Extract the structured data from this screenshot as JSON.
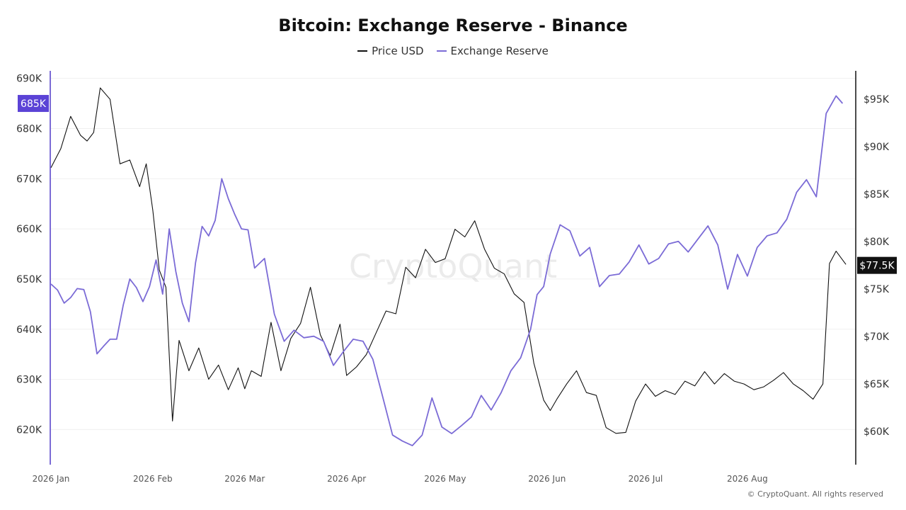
{
  "chart_data": {
    "type": "line",
    "title": "Bitcoin: Exchange Reserve - Binance",
    "legend_placement": "top-center",
    "grid": true,
    "x_ticks": [
      "2026 Jan",
      "2026 Feb",
      "2026 Mar",
      "2026 Apr",
      "2026 May",
      "2026 Jun",
      "2026 Jul",
      "2026 Aug"
    ],
    "left_axis": {
      "ticks": [
        "690K",
        "680K",
        "670K",
        "660K",
        "650K",
        "640K",
        "630K",
        "620K"
      ],
      "range": [
        613000,
        691500
      ],
      "last_value_label": "685K",
      "last_value": 685000
    },
    "right_axis": {
      "ticks": [
        "$95K",
        "$90K",
        "$85K",
        "$80K",
        "$75K",
        "$70K",
        "$65K",
        "$60K"
      ],
      "range": [
        56500,
        98000
      ],
      "last_value_label": "$77.5K",
      "last_value": 77500
    },
    "series": [
      {
        "name": "Price USD",
        "axis": "right",
        "color": "#111111",
        "x": [
          "2026-01-01",
          "2026-01-04",
          "2026-01-07",
          "2026-01-10",
          "2026-01-12",
          "2026-01-14",
          "2026-01-16",
          "2026-01-19",
          "2026-01-22",
          "2026-01-25",
          "2026-01-28",
          "2026-01-30",
          "2026-02-01",
          "2026-02-03",
          "2026-02-05",
          "2026-02-07",
          "2026-02-09",
          "2026-02-12",
          "2026-02-15",
          "2026-02-18",
          "2026-02-21",
          "2026-02-24",
          "2026-02-27",
          "2026-03-01",
          "2026-03-03",
          "2026-03-06",
          "2026-03-09",
          "2026-03-12",
          "2026-03-15",
          "2026-03-18",
          "2026-03-21",
          "2026-03-24",
          "2026-03-27",
          "2026-03-30",
          "2026-04-01",
          "2026-04-04",
          "2026-04-07",
          "2026-04-10",
          "2026-04-13",
          "2026-04-16",
          "2026-04-19",
          "2026-04-22",
          "2026-04-25",
          "2026-04-28",
          "2026-05-01",
          "2026-05-04",
          "2026-05-07",
          "2026-05-10",
          "2026-05-13",
          "2026-05-16",
          "2026-05-19",
          "2026-05-22",
          "2026-05-25",
          "2026-05-28",
          "2026-05-31",
          "2026-06-02",
          "2026-06-04",
          "2026-06-07",
          "2026-06-10",
          "2026-06-13",
          "2026-06-16",
          "2026-06-19",
          "2026-06-22",
          "2026-06-25",
          "2026-06-28",
          "2026-07-01",
          "2026-07-04",
          "2026-07-07",
          "2026-07-10",
          "2026-07-13",
          "2026-07-16",
          "2026-07-19",
          "2026-07-22",
          "2026-07-25",
          "2026-07-28",
          "2026-07-31",
          "2026-08-03",
          "2026-08-06",
          "2026-08-09",
          "2026-08-12",
          "2026-08-15",
          "2026-08-18",
          "2026-08-21",
          "2026-08-24",
          "2026-08-26",
          "2026-08-28",
          "2026-08-31"
        ],
        "values": [
          87800,
          89800,
          93200,
          91200,
          90600,
          91500,
          96200,
          95000,
          88200,
          88600,
          85800,
          88200,
          83300,
          77000,
          75200,
          61100,
          69600,
          66400,
          68800,
          65500,
          67000,
          64400,
          66700,
          64500,
          66400,
          65800,
          71500,
          66400,
          69800,
          71400,
          75200,
          70200,
          68000,
          71300,
          65900,
          66800,
          68100,
          70400,
          72700,
          72400,
          77300,
          76200,
          79200,
          77800,
          78200,
          81300,
          80500,
          82200,
          79200,
          77200,
          76600,
          74500,
          73600,
          67200,
          63300,
          62200,
          63400,
          65000,
          66400,
          64100,
          63800,
          60400,
          59800,
          59900,
          63200,
          65000,
          63700,
          64300,
          63900,
          65300,
          64800,
          66300,
          65000,
          66100,
          65300,
          65000,
          64400,
          64700,
          65400,
          66200,
          65000,
          64300,
          63400,
          65000,
          77700,
          79000,
          77600
        ]
      },
      {
        "name": "Exchange Reserve",
        "axis": "left",
        "color": "#7B6BD6",
        "x": [
          "2026-01-01",
          "2026-01-03",
          "2026-01-05",
          "2026-01-07",
          "2026-01-09",
          "2026-01-11",
          "2026-01-13",
          "2026-01-15",
          "2026-01-17",
          "2026-01-19",
          "2026-01-21",
          "2026-01-23",
          "2026-01-25",
          "2026-01-27",
          "2026-01-29",
          "2026-01-31",
          "2026-02-02",
          "2026-02-04",
          "2026-02-06",
          "2026-02-08",
          "2026-02-10",
          "2026-02-12",
          "2026-02-14",
          "2026-02-16",
          "2026-02-18",
          "2026-02-20",
          "2026-02-22",
          "2026-02-24",
          "2026-02-26",
          "2026-02-28",
          "2026-03-02",
          "2026-03-04",
          "2026-03-07",
          "2026-03-10",
          "2026-03-13",
          "2026-03-16",
          "2026-03-19",
          "2026-03-22",
          "2026-03-25",
          "2026-03-28",
          "2026-03-31",
          "2026-04-03",
          "2026-04-06",
          "2026-04-09",
          "2026-04-12",
          "2026-04-15",
          "2026-04-18",
          "2026-04-21",
          "2026-04-24",
          "2026-04-27",
          "2026-04-30",
          "2026-05-03",
          "2026-05-06",
          "2026-05-09",
          "2026-05-12",
          "2026-05-15",
          "2026-05-18",
          "2026-05-21",
          "2026-05-24",
          "2026-05-27",
          "2026-05-29",
          "2026-05-31",
          "2026-06-02",
          "2026-06-05",
          "2026-06-08",
          "2026-06-11",
          "2026-06-14",
          "2026-06-17",
          "2026-06-20",
          "2026-06-23",
          "2026-06-26",
          "2026-06-29",
          "2026-07-02",
          "2026-07-05",
          "2026-07-08",
          "2026-07-11",
          "2026-07-14",
          "2026-07-17",
          "2026-07-20",
          "2026-07-23",
          "2026-07-26",
          "2026-07-29",
          "2026-08-01",
          "2026-08-04",
          "2026-08-07",
          "2026-08-10",
          "2026-08-13",
          "2026-08-16",
          "2026-08-19",
          "2026-08-22",
          "2026-08-25",
          "2026-08-28",
          "2026-08-30"
        ],
        "values": [
          649000,
          647800,
          645200,
          646300,
          648100,
          647900,
          643500,
          635100,
          636600,
          638000,
          638000,
          644800,
          650000,
          648300,
          645500,
          648500,
          653800,
          647000,
          660000,
          651500,
          645200,
          641500,
          653200,
          660500,
          658600,
          661700,
          670000,
          666000,
          662800,
          660000,
          659800,
          652200,
          654100,
          643000,
          637600,
          639800,
          638300,
          638600,
          637600,
          632800,
          635500,
          638000,
          637600,
          634000,
          626500,
          618900,
          617700,
          616800,
          618900,
          626300,
          620500,
          619200,
          620800,
          622500,
          626800,
          623900,
          627300,
          631700,
          634300,
          640000,
          646900,
          648500,
          655000,
          660800,
          659600,
          654600,
          656300,
          648500,
          650700,
          651000,
          653400,
          656800,
          653000,
          654100,
          657000,
          657500,
          655400,
          658000,
          660600,
          656800,
          648000,
          654900,
          650600,
          656300,
          658600,
          659200,
          661900,
          667300,
          669800,
          666400,
          683000,
          686500,
          685000
        ]
      }
    ]
  },
  "watermark": "CryptoQuant",
  "copyright": "© CryptoQuant. All rights reserved"
}
